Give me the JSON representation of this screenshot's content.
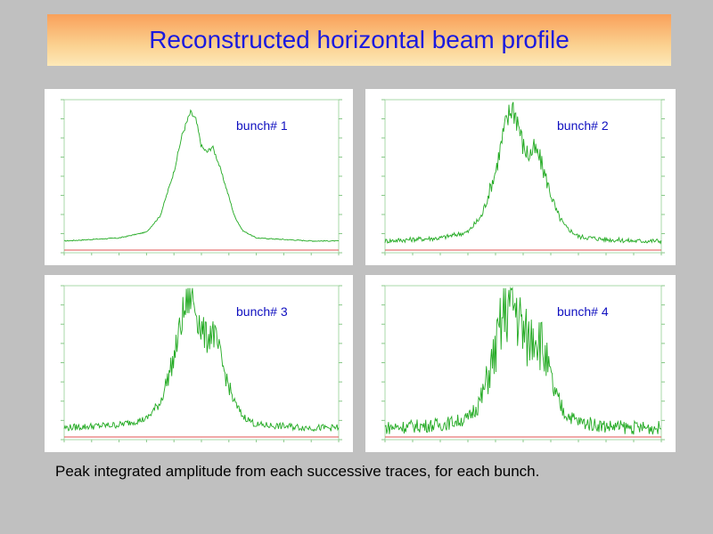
{
  "slide": {
    "title": "Reconstructed horizontal beam profile",
    "caption": "Peak integrated amplitude from each successive traces, for each bunch."
  },
  "colors": {
    "trace": "#22aa22",
    "baseline": "#e05050",
    "banner_text": "#1a1adf"
  },
  "chart_data": [
    {
      "type": "line",
      "title": "bunch# 1",
      "xlim": [
        0,
        1
      ],
      "ylim": [
        0,
        1
      ],
      "x": [
        0,
        0.1,
        0.2,
        0.3,
        0.35,
        0.4,
        0.43,
        0.46,
        0.48,
        0.5,
        0.52,
        0.54,
        0.56,
        0.58,
        0.6,
        0.62,
        0.65,
        0.7,
        0.8,
        0.9,
        1
      ],
      "y": [
        0.08,
        0.09,
        0.1,
        0.14,
        0.25,
        0.55,
        0.8,
        0.95,
        0.9,
        0.72,
        0.68,
        0.72,
        0.62,
        0.5,
        0.38,
        0.25,
        0.15,
        0.1,
        0.09,
        0.08,
        0.08
      ],
      "noise": 0.01
    },
    {
      "type": "line",
      "title": "bunch# 2",
      "xlim": [
        0,
        1
      ],
      "ylim": [
        0,
        1
      ],
      "x": [
        0,
        0.1,
        0.2,
        0.3,
        0.35,
        0.4,
        0.43,
        0.46,
        0.48,
        0.5,
        0.52,
        0.54,
        0.56,
        0.58,
        0.6,
        0.62,
        0.65,
        0.7,
        0.8,
        0.9,
        1
      ],
      "y": [
        0.08,
        0.09,
        0.1,
        0.14,
        0.25,
        0.55,
        0.82,
        1.0,
        0.9,
        0.72,
        0.66,
        0.7,
        0.64,
        0.52,
        0.4,
        0.28,
        0.18,
        0.11,
        0.09,
        0.08,
        0.08
      ],
      "noise": 0.05
    },
    {
      "type": "line",
      "title": "bunch# 3",
      "xlim": [
        0,
        1
      ],
      "ylim": [
        0,
        1
      ],
      "x": [
        0,
        0.1,
        0.2,
        0.3,
        0.35,
        0.4,
        0.43,
        0.46,
        0.48,
        0.5,
        0.52,
        0.54,
        0.56,
        0.58,
        0.6,
        0.62,
        0.65,
        0.7,
        0.8,
        0.9,
        1
      ],
      "y": [
        0.08,
        0.09,
        0.1,
        0.14,
        0.25,
        0.55,
        0.82,
        0.98,
        0.88,
        0.74,
        0.68,
        0.74,
        0.62,
        0.48,
        0.36,
        0.25,
        0.16,
        0.1,
        0.09,
        0.08,
        0.08
      ],
      "noise": 0.07
    },
    {
      "type": "line",
      "title": "bunch# 4",
      "xlim": [
        0,
        1
      ],
      "ylim": [
        0,
        1
      ],
      "x": [
        0,
        0.1,
        0.2,
        0.3,
        0.35,
        0.4,
        0.43,
        0.46,
        0.48,
        0.5,
        0.52,
        0.54,
        0.56,
        0.58,
        0.6,
        0.62,
        0.65,
        0.7,
        0.8,
        0.9,
        1
      ],
      "y": [
        0.08,
        0.09,
        0.1,
        0.14,
        0.28,
        0.6,
        0.85,
        0.95,
        0.85,
        0.72,
        0.66,
        0.76,
        0.68,
        0.55,
        0.4,
        0.28,
        0.18,
        0.12,
        0.09,
        0.08,
        0.08
      ],
      "noise": 0.14
    }
  ]
}
